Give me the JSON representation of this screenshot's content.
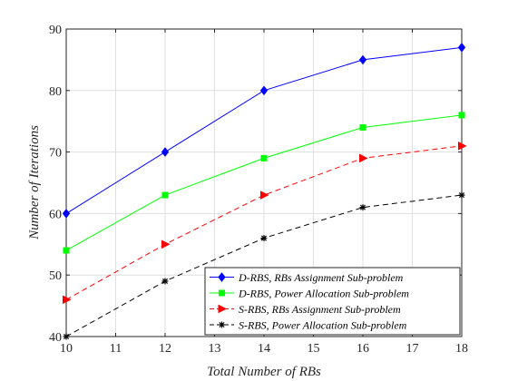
{
  "chart_data": {
    "type": "line",
    "title": "",
    "xlabel": "Total Number of RBs",
    "ylabel": "Number of Iterations",
    "xlim": [
      10,
      18
    ],
    "ylim": [
      40,
      90
    ],
    "xticks": [
      10,
      11,
      12,
      13,
      14,
      15,
      16,
      17,
      18
    ],
    "yticks": [
      40,
      50,
      60,
      70,
      80,
      90
    ],
    "grid": true,
    "legend_position": "bottom-right",
    "x": [
      10,
      12,
      14,
      16,
      18
    ],
    "series": [
      {
        "name": "D-RBS, RBs Assignment Sub-problem",
        "values": [
          60,
          70,
          80,
          85,
          87
        ],
        "color": "#0000ff",
        "line_style": "solid",
        "marker": "diamond"
      },
      {
        "name": "D-RBS, Power Allocation Sub-problem",
        "values": [
          54,
          63,
          69,
          74,
          76
        ],
        "color": "#00ff00",
        "line_style": "solid",
        "marker": "square"
      },
      {
        "name": "S-RBS, RBs Assignment Sub-problem",
        "values": [
          46,
          55,
          63,
          69,
          71
        ],
        "color": "#ff0000",
        "line_style": "dashed",
        "marker": "triangle-right"
      },
      {
        "name": "S-RBS, Power Allocation Sub-problem",
        "values": [
          40,
          49,
          56,
          61,
          63
        ],
        "color": "#000000",
        "line_style": "dashed",
        "marker": "asterisk"
      }
    ]
  }
}
